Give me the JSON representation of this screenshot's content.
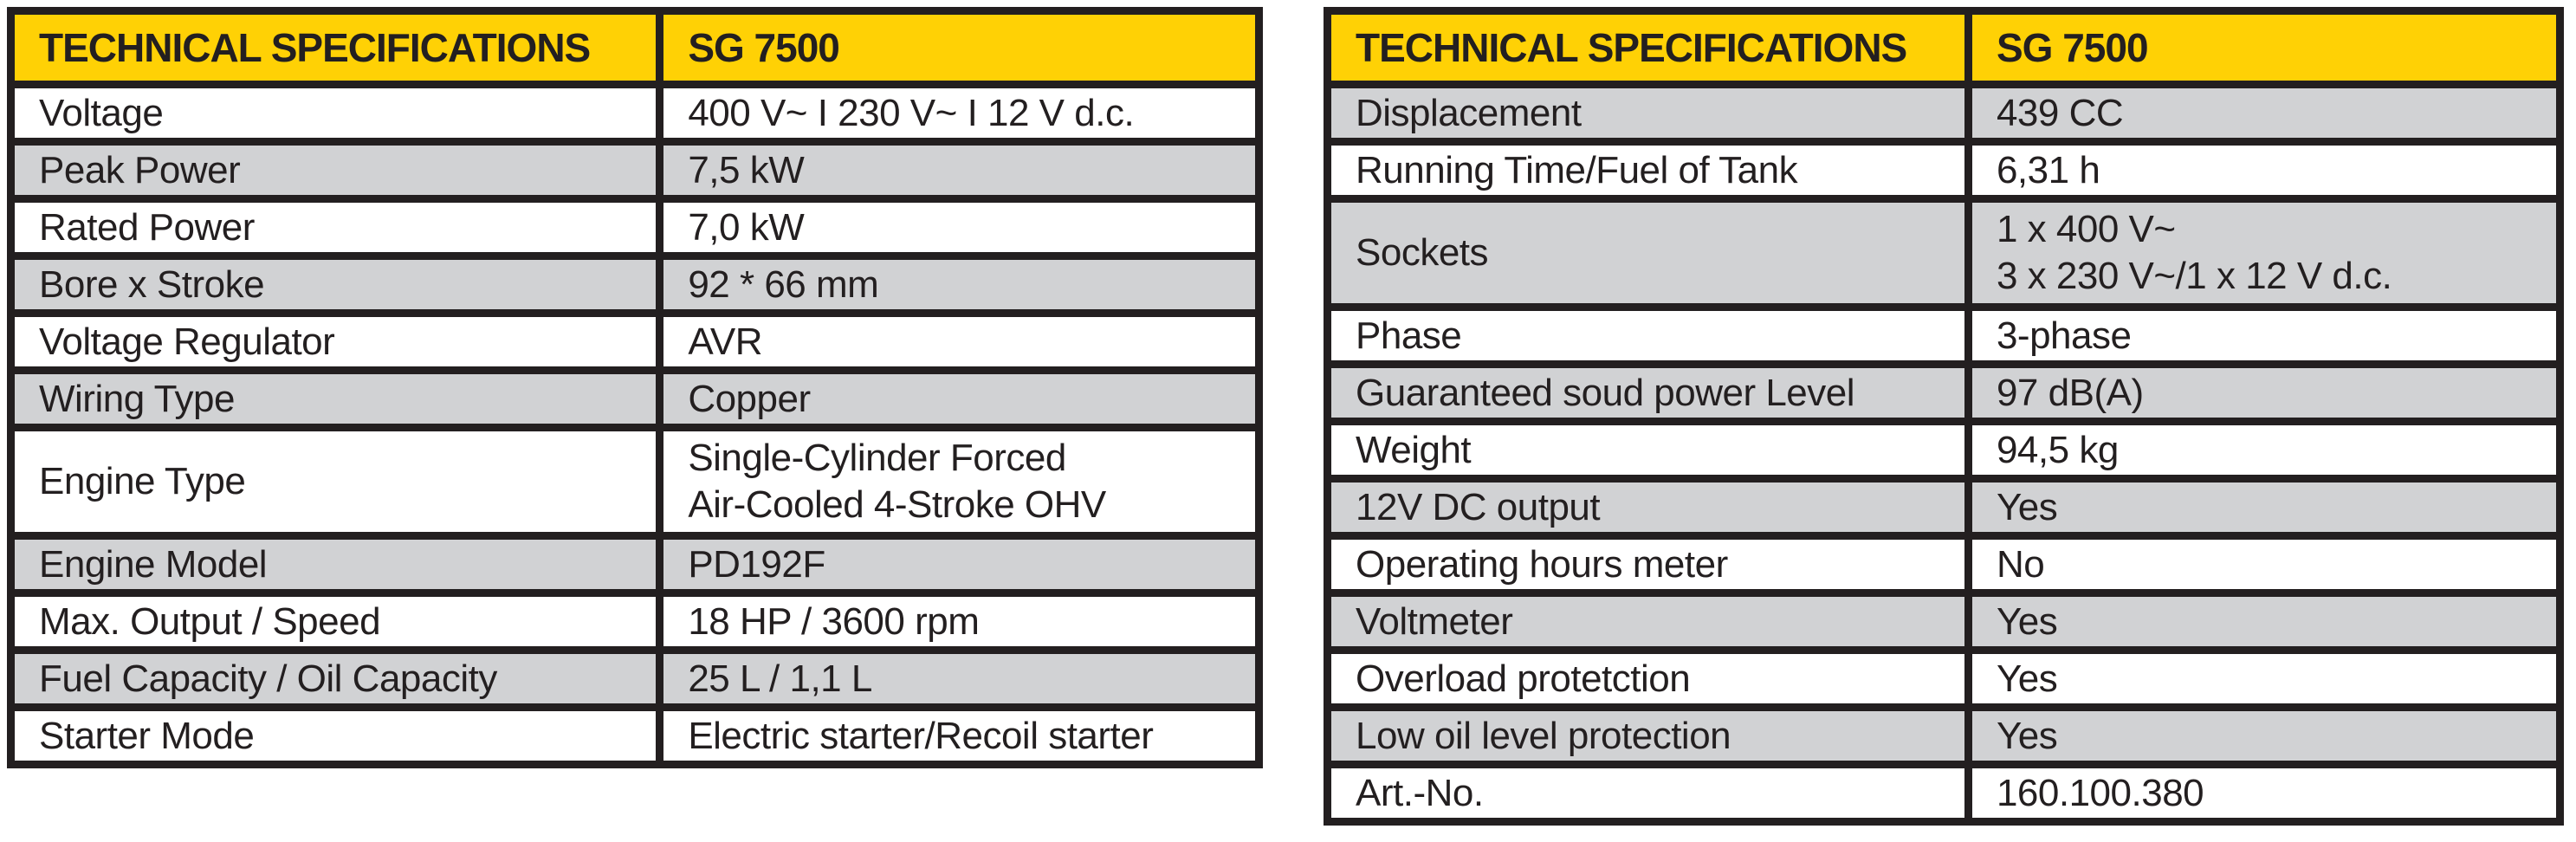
{
  "colors": {
    "header_bg": "#ffd105",
    "shaded_row_bg": "#d1d2d4",
    "row_bg": "#ffffff",
    "grid_border": "#231f20",
    "text": "#231f20"
  },
  "left_table": {
    "header": {
      "title": "TECHNICAL SPECIFICATIONS",
      "model": "SG 7500"
    },
    "rows": [
      {
        "label": "Voltage",
        "value": "400 V~ I 230 V~ I 12 V d.c.",
        "shaded": false,
        "tall": false
      },
      {
        "label": "Peak Power",
        "value": "7,5 kW",
        "shaded": true,
        "tall": false
      },
      {
        "label": "Rated Power",
        "value": "7,0 kW",
        "shaded": false,
        "tall": false
      },
      {
        "label": "Bore x Stroke",
        "value": "92 * 66 mm",
        "shaded": true,
        "tall": false
      },
      {
        "label": "Voltage Regulator",
        "value": "AVR",
        "shaded": false,
        "tall": false
      },
      {
        "label": "Wiring Type",
        "value": "Copper",
        "shaded": true,
        "tall": false
      },
      {
        "label": "Engine Type",
        "value": "Single-Cylinder Forced\nAir-Cooled 4-Stroke OHV",
        "shaded": false,
        "tall": true
      },
      {
        "label": "Engine Model",
        "value": "PD192F",
        "shaded": true,
        "tall": false
      },
      {
        "label": "Max. Output / Speed",
        "value": "18 HP / 3600 rpm",
        "shaded": false,
        "tall": false
      },
      {
        "label": "Fuel Capacity / Oil Capacity",
        "value": "25 L / 1,1 L",
        "shaded": true,
        "tall": false
      },
      {
        "label": "Starter Mode",
        "value": "Electric starter/Recoil starter",
        "shaded": false,
        "tall": false
      }
    ]
  },
  "right_table": {
    "header": {
      "title": "TECHNICAL SPECIFICATIONS",
      "model": "SG 7500"
    },
    "rows": [
      {
        "label": "Displacement",
        "value": "439 CC",
        "shaded": true,
        "tall": false
      },
      {
        "label": "Running Time/Fuel of Tank",
        "value": "6,31 h",
        "shaded": false,
        "tall": false
      },
      {
        "label": "Sockets",
        "value": "1 x 400 V~\n3 x 230 V~/1 x 12 V d.c.",
        "shaded": true,
        "tall": true
      },
      {
        "label": "Phase",
        "value": "3-phase",
        "shaded": false,
        "tall": false
      },
      {
        "label": "Guaranteed soud power Level",
        "value": "97 dB(A)",
        "shaded": true,
        "tall": false
      },
      {
        "label": "Weight",
        "value": "94,5 kg",
        "shaded": false,
        "tall": false
      },
      {
        "label": "12V DC output",
        "value": "Yes",
        "shaded": true,
        "tall": false
      },
      {
        "label": "Operating hours meter",
        "value": "No",
        "shaded": false,
        "tall": false
      },
      {
        "label": "Voltmeter",
        "value": "Yes",
        "shaded": true,
        "tall": false
      },
      {
        "label": "Overload protetction",
        "value": "Yes",
        "shaded": false,
        "tall": false
      },
      {
        "label": "Low oil level protection",
        "value": "Yes",
        "shaded": true,
        "tall": false
      },
      {
        "label": "Art.-No.",
        "value": "160.100.380",
        "shaded": false,
        "tall": false
      }
    ]
  }
}
